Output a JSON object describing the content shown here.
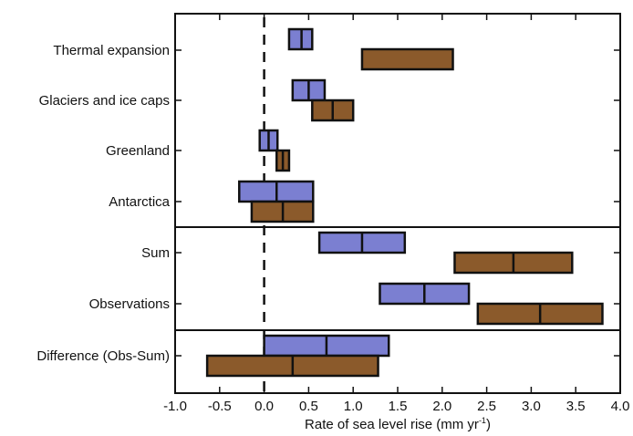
{
  "chart_data": {
    "type": "bar",
    "xlabel_main": "Rate of sea level rise (mm yr",
    "xlabel_sup": "-1",
    "xlabel_end": ")",
    "xlim": [
      -1.0,
      4.0
    ],
    "xticks": [
      "-1.0",
      "-0.5",
      "0.0",
      "0.5",
      "1.0",
      "1.5",
      "2.0",
      "2.5",
      "3.0",
      "3.5",
      "4.0"
    ],
    "xtick_values": [
      -1.0,
      -0.5,
      0.0,
      0.5,
      1.0,
      1.5,
      2.0,
      2.5,
      3.0,
      3.5,
      4.0
    ],
    "zero_line": "dashed",
    "series": [
      {
        "id": "blue",
        "color": "#7b7fd1"
      },
      {
        "id": "brown",
        "color": "#8b5a2b"
      }
    ],
    "categories": [
      {
        "label": "Thermal expansion",
        "group": 1,
        "blue": {
          "low": 0.28,
          "mid": 0.42,
          "high": 0.54
        },
        "brown": {
          "low": 1.1,
          "mid": null,
          "high": 2.12
        }
      },
      {
        "label": "Glaciers and ice caps",
        "group": 1,
        "blue": {
          "low": 0.32,
          "mid": 0.5,
          "high": 0.68
        },
        "brown": {
          "low": 0.54,
          "mid": 0.77,
          "high": 1.0
        }
      },
      {
        "label": "Greenland",
        "group": 1,
        "blue": {
          "low": -0.05,
          "mid": 0.05,
          "high": 0.15
        },
        "brown": {
          "low": 0.14,
          "mid": 0.21,
          "high": 0.28
        }
      },
      {
        "label": "Antarctica",
        "group": 1,
        "blue": {
          "low": -0.28,
          "mid": 0.14,
          "high": 0.55
        },
        "brown": {
          "low": -0.14,
          "mid": 0.21,
          "high": 0.55
        }
      },
      {
        "label": "Sum",
        "group": 2,
        "blue": {
          "low": 0.62,
          "mid": 1.1,
          "high": 1.58
        },
        "brown": {
          "low": 2.14,
          "mid": 2.8,
          "high": 3.46
        }
      },
      {
        "label": "Observations",
        "group": 2,
        "blue": {
          "low": 1.3,
          "mid": 1.8,
          "high": 2.3
        },
        "brown": {
          "low": 2.4,
          "mid": 3.1,
          "high": 3.8
        }
      },
      {
        "label": "Difference (Obs-Sum)",
        "group": 3,
        "blue": {
          "low": 0.0,
          "mid": 0.7,
          "high": 1.4
        },
        "brown": {
          "low": -0.64,
          "mid": 0.32,
          "high": 1.28
        }
      }
    ]
  }
}
